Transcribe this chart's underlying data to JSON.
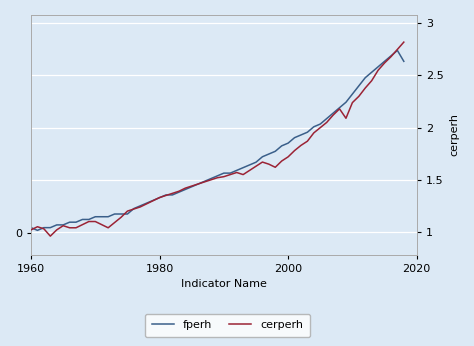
{
  "title": "",
  "xlabel": "Indicator Name",
  "ylabel_right": "cerperh",
  "background_color": "#dce9f5",
  "grid_color": "#ffffff",
  "fperh_color": "#3a5f8a",
  "cerperh_color": "#9b2335",
  "legend_labels": [
    "fperh",
    "cerperh"
  ],
  "years": [
    1960,
    1961,
    1962,
    1963,
    1964,
    1965,
    1966,
    1967,
    1968,
    1969,
    1970,
    1971,
    1972,
    1973,
    1974,
    1975,
    1976,
    1977,
    1978,
    1979,
    1980,
    1981,
    1982,
    1983,
    1984,
    1985,
    1986,
    1987,
    1988,
    1989,
    1990,
    1991,
    1992,
    1993,
    1994,
    1995,
    1996,
    1997,
    1998,
    1999,
    2000,
    2001,
    2002,
    2003,
    2004,
    2005,
    2006,
    2007,
    2008,
    2009,
    2010,
    2011,
    2012,
    2013,
    2014,
    2015,
    2016,
    2017,
    2018
  ],
  "fperh": [
    0.02,
    0.01,
    0.02,
    0.02,
    0.03,
    0.03,
    0.04,
    0.04,
    0.05,
    0.05,
    0.06,
    0.06,
    0.06,
    0.07,
    0.07,
    0.07,
    0.09,
    0.1,
    0.11,
    0.12,
    0.13,
    0.14,
    0.14,
    0.15,
    0.16,
    0.17,
    0.18,
    0.19,
    0.2,
    0.21,
    0.22,
    0.22,
    0.23,
    0.24,
    0.25,
    0.26,
    0.28,
    0.29,
    0.3,
    0.32,
    0.33,
    0.35,
    0.36,
    0.37,
    0.39,
    0.4,
    0.42,
    0.44,
    0.46,
    0.48,
    0.51,
    0.54,
    0.57,
    0.59,
    0.61,
    0.63,
    0.65,
    0.67,
    0.63
  ],
  "cerperh": [
    1.02,
    1.05,
    1.03,
    0.96,
    1.02,
    1.06,
    1.04,
    1.04,
    1.07,
    1.1,
    1.1,
    1.07,
    1.04,
    1.09,
    1.14,
    1.2,
    1.22,
    1.24,
    1.27,
    1.3,
    1.33,
    1.35,
    1.37,
    1.39,
    1.42,
    1.44,
    1.46,
    1.48,
    1.5,
    1.52,
    1.53,
    1.55,
    1.57,
    1.55,
    1.59,
    1.63,
    1.67,
    1.65,
    1.62,
    1.68,
    1.72,
    1.78,
    1.83,
    1.87,
    1.95,
    2.0,
    2.05,
    2.12,
    2.18,
    2.09,
    2.24,
    2.3,
    2.38,
    2.45,
    2.55,
    2.62,
    2.68,
    2.75,
    2.82
  ],
  "xlim": [
    1960,
    2020
  ],
  "ylim_left": [
    -0.08,
    0.8
  ],
  "ylim_right": [
    0.78,
    3.08
  ],
  "yticks_left": [
    0.0
  ],
  "yticks_right": [
    1.0,
    1.5,
    2.0,
    2.5,
    3.0
  ],
  "xticks": [
    1960,
    1980,
    2000,
    2020
  ]
}
